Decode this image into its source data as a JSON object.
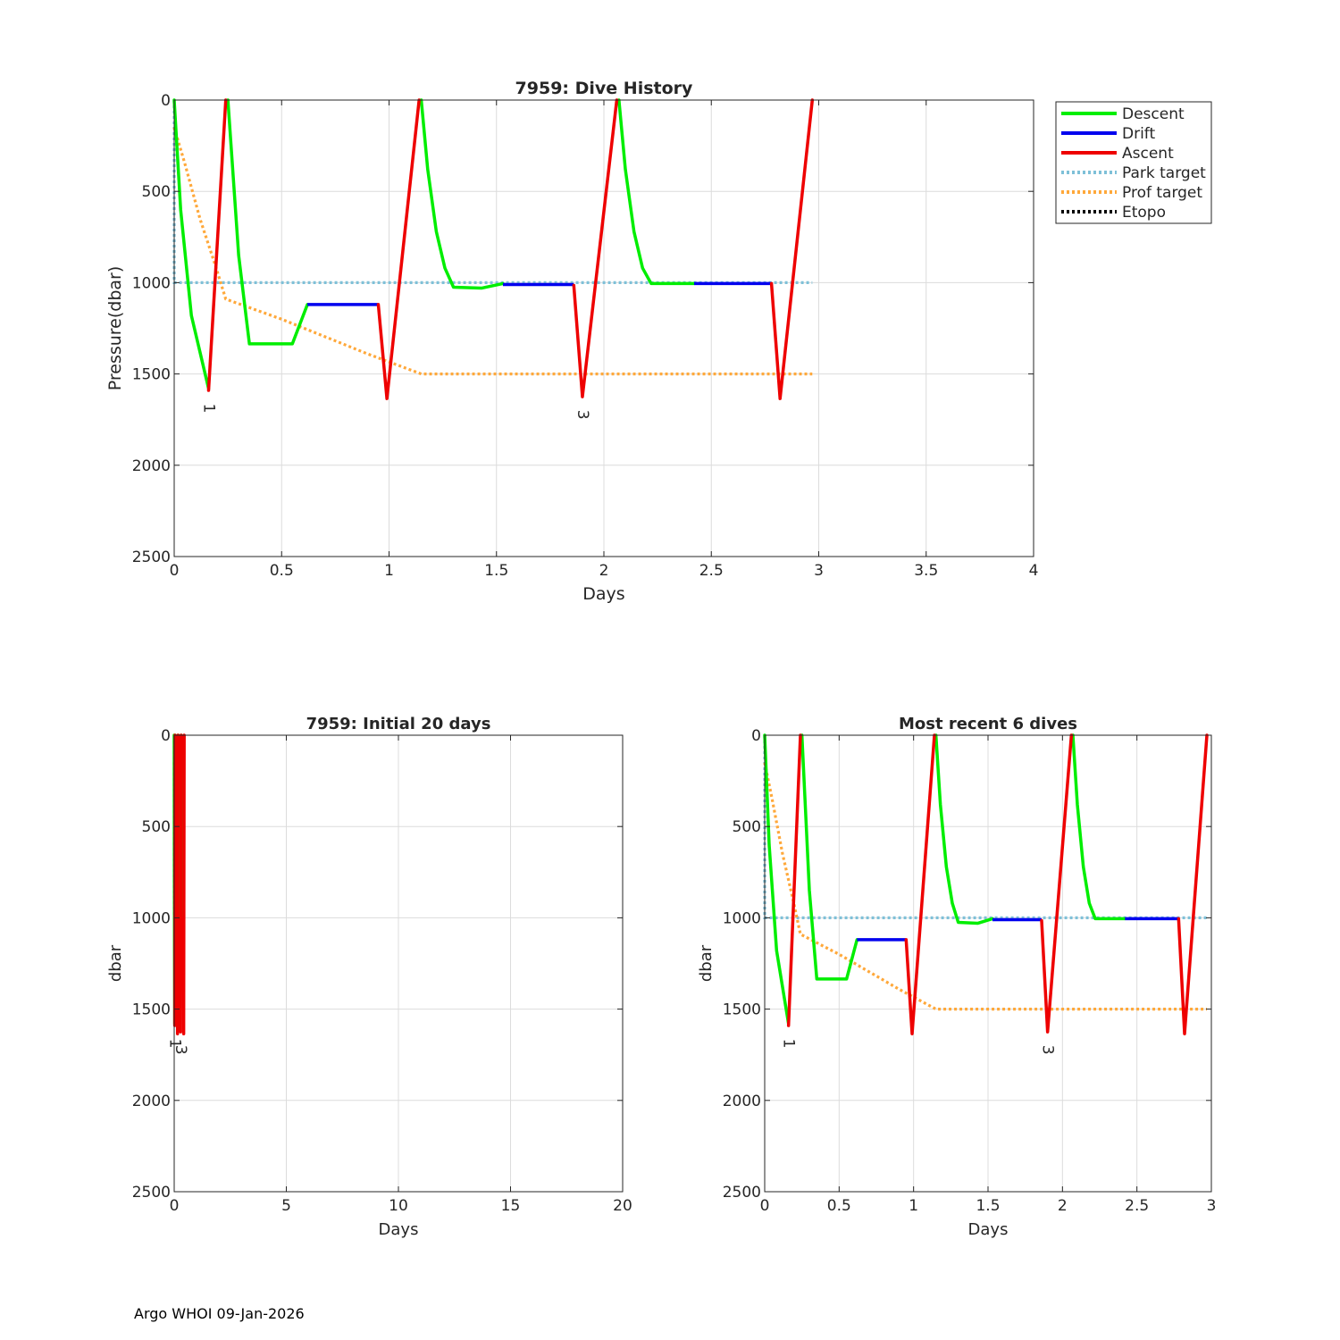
{
  "footer": "Argo WHOI 09-Jan-2026",
  "colors": {
    "descent": "#00ee00",
    "drift": "#0000ee",
    "ascent": "#ee0000",
    "park": "#7ec0d8",
    "prof": "#ffa83a",
    "etopo": "#000000",
    "grid": "#dcdcdc",
    "axis": "#262626"
  },
  "chart_data": [
    {
      "id": "main",
      "type": "line",
      "title": "7959: Dive History",
      "xlabel": "Days",
      "ylabel": "Pressure(dbar)",
      "xlim": [
        0,
        4
      ],
      "ylim": [
        0,
        2500
      ],
      "y_reversed": true,
      "grid": true,
      "legend_position": "outside-top-right",
      "xticks": [
        0,
        0.5,
        1,
        1.5,
        2,
        2.5,
        3,
        3.5,
        4
      ],
      "xtick_labels": [
        "0",
        "0.5",
        "1",
        "1.5",
        "2",
        "2.5",
        "3",
        "3.5",
        "4"
      ],
      "yticks": [
        0,
        500,
        1000,
        1500,
        2000,
        2500
      ],
      "ytick_labels": [
        "0",
        "500",
        "1000",
        "1500",
        "2000",
        "2500"
      ]
    },
    {
      "id": "initial",
      "type": "line",
      "title": "7959: Initial 20 days",
      "xlabel": "Days",
      "ylabel": "dbar",
      "xlim": [
        0,
        20
      ],
      "ylim": [
        0,
        2500
      ],
      "y_reversed": true,
      "grid": true,
      "xticks": [
        0,
        5,
        10,
        15,
        20
      ],
      "xtick_labels": [
        "0",
        "5",
        "10",
        "15",
        "20"
      ],
      "yticks": [
        0,
        500,
        1000,
        1500,
        2000,
        2500
      ],
      "ytick_labels": [
        "0",
        "500",
        "1000",
        "1500",
        "2000",
        "2500"
      ]
    },
    {
      "id": "recent",
      "type": "line",
      "title": "Most recent 6 dives",
      "xlabel": "Days",
      "ylabel": "dbar",
      "xlim": [
        0,
        3
      ],
      "ylim": [
        0,
        2500
      ],
      "y_reversed": true,
      "grid": true,
      "xticks": [
        0,
        0.5,
        1,
        1.5,
        2,
        2.5,
        3
      ],
      "xtick_labels": [
        "0",
        "0.5",
        "1",
        "1.5",
        "2",
        "2.5",
        "3"
      ],
      "yticks": [
        0,
        500,
        1000,
        1500,
        2000,
        2500
      ],
      "ytick_labels": [
        "0",
        "500",
        "1000",
        "1500",
        "2000",
        "2500"
      ]
    }
  ],
  "series_data": {
    "legend": [
      "Descent",
      "Drift",
      "Ascent",
      "Park target",
      "Prof target",
      "Etopo"
    ],
    "descent": [
      [
        [
          0,
          0
        ],
        [
          0.03,
          600
        ],
        [
          0.08,
          1180
        ],
        [
          0.16,
          1580
        ]
      ],
      [
        [
          0.25,
          0
        ],
        [
          0.3,
          850
        ],
        [
          0.35,
          1335
        ],
        [
          0.55,
          1335
        ],
        [
          0.62,
          1120
        ]
      ],
      [
        [
          1.15,
          0
        ],
        [
          1.18,
          380
        ],
        [
          1.22,
          720
        ],
        [
          1.26,
          920
        ],
        [
          1.3,
          1025
        ],
        [
          1.43,
          1030
        ],
        [
          1.53,
          1005
        ]
      ],
      [
        [
          2.07,
          0
        ],
        [
          2.1,
          380
        ],
        [
          2.14,
          720
        ],
        [
          2.18,
          920
        ],
        [
          2.22,
          1005
        ],
        [
          2.42,
          1005
        ]
      ]
    ],
    "drift": [
      [
        [
          0.62,
          1120
        ],
        [
          0.95,
          1120
        ]
      ],
      [
        [
          1.53,
          1010
        ],
        [
          1.86,
          1010
        ]
      ],
      [
        [
          2.42,
          1005
        ],
        [
          2.78,
          1005
        ]
      ]
    ],
    "ascent": [
      [
        [
          0.16,
          1590
        ],
        [
          0.24,
          0
        ]
      ],
      [
        [
          0.95,
          1120
        ],
        [
          0.99,
          1635
        ],
        [
          1.14,
          0
        ]
      ],
      [
        [
          1.86,
          1015
        ],
        [
          1.9,
          1625
        ],
        [
          2.06,
          0
        ]
      ],
      [
        [
          2.78,
          1005
        ],
        [
          2.82,
          1635
        ],
        [
          2.97,
          0
        ]
      ]
    ],
    "park": [
      [
        0,
        0
      ],
      [
        0,
        1000
      ],
      [
        2.97,
        1000
      ]
    ],
    "prof": [
      [
        0,
        150
      ],
      [
        0.05,
        350
      ],
      [
        0.12,
        650
      ],
      [
        0.19,
        900
      ],
      [
        0.24,
        1090
      ],
      [
        0.5,
        1200
      ],
      [
        0.9,
        1390
      ],
      [
        1.15,
        1500
      ],
      [
        2.97,
        1500
      ]
    ],
    "labels": [
      {
        "text": "1",
        "x": 0.16,
        "y": 1590
      },
      {
        "text": "3",
        "x": 1.9,
        "y": 1625
      }
    ]
  }
}
